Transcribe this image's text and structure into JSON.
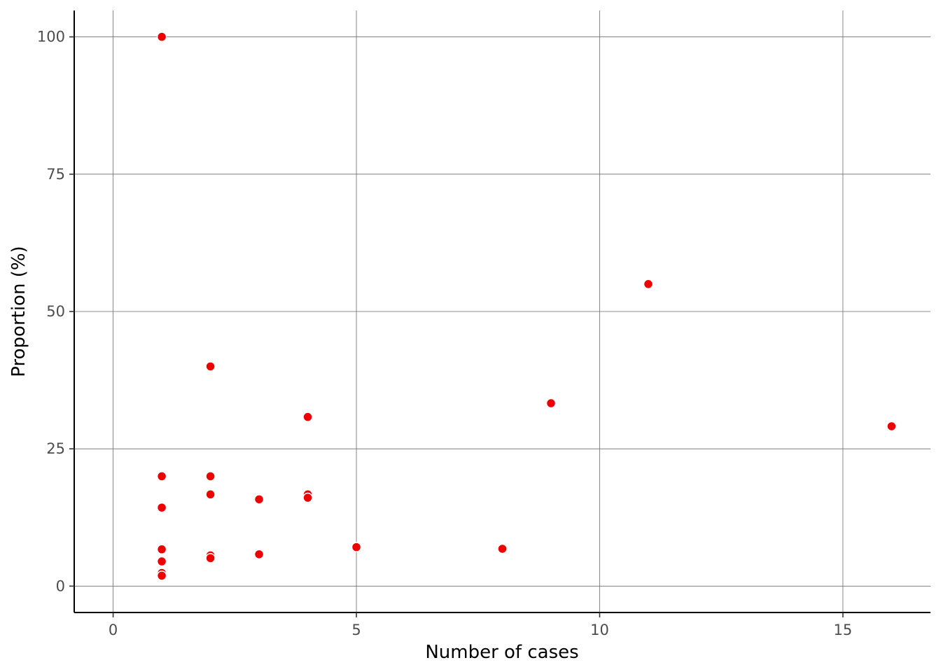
{
  "chart_data": {
    "type": "scatter",
    "title": "",
    "xlabel": "Number of cases",
    "ylabel": "Proportion (%)",
    "xlim": [
      -0.8,
      16.8
    ],
    "ylim": [
      -4.8,
      104.8
    ],
    "x_ticks": [
      0,
      5,
      10,
      15
    ],
    "y_ticks": [
      0,
      25,
      50,
      75,
      100
    ],
    "x_tick_labels": [
      "0",
      "5",
      "10",
      "15"
    ],
    "y_tick_labels": [
      "0",
      "25",
      "50",
      "75",
      "100"
    ],
    "grid": true,
    "legend": "none",
    "point_color": "#ee0000",
    "series": [
      {
        "x": [
          1,
          1,
          1,
          1,
          1,
          1,
          1,
          2,
          2,
          2,
          2,
          2,
          2,
          3,
          3,
          4,
          4,
          4,
          5,
          8,
          9,
          11,
          16
        ],
        "y": [
          100,
          20,
          14.3,
          6.7,
          4.5,
          2.4,
          1.9,
          40,
          20,
          16.7,
          5.6,
          5.1,
          16.7,
          15.8,
          5.8,
          30.8,
          16.7,
          16.1,
          7.1,
          6.8,
          33.3,
          55,
          29.1
        ]
      }
    ]
  }
}
